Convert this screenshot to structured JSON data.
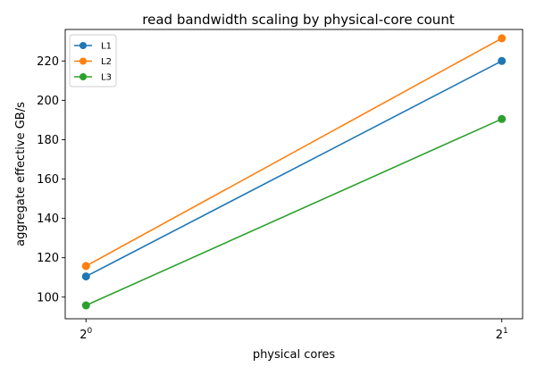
{
  "chart_data": {
    "type": "line",
    "title": "read bandwidth scaling by physical-core count",
    "xlabel": "physical cores",
    "ylabel": "aggregate effective GB/s",
    "x_scale": "log2",
    "x": [
      1,
      2
    ],
    "x_ticks": [
      {
        "base": "2",
        "exp": "0"
      },
      {
        "base": "2",
        "exp": "1"
      }
    ],
    "y_ticks": [
      "100",
      "120",
      "140",
      "160",
      "180",
      "200",
      "220"
    ],
    "ylim": [
      89,
      236
    ],
    "grid": false,
    "legend_position": "top-left",
    "series": [
      {
        "name": "L1",
        "color": "#1f77b4",
        "values": [
          110.5,
          220.0
        ]
      },
      {
        "name": "L2",
        "color": "#ff7f0e",
        "values": [
          115.8,
          231.5
        ]
      },
      {
        "name": "L3",
        "color": "#2ca02c",
        "values": [
          95.8,
          190.5
        ]
      }
    ]
  }
}
